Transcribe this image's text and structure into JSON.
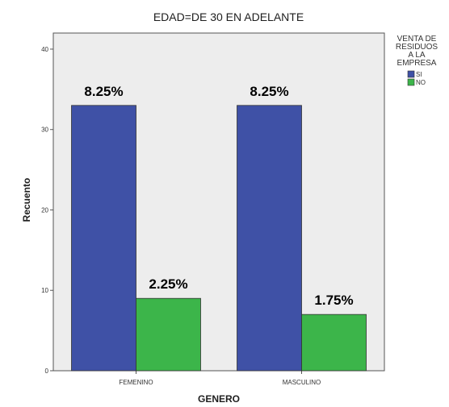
{
  "chart_data": {
    "type": "bar",
    "title": "EDAD=DE 30 EN ADELANTE",
    "xlabel": "GENERO",
    "ylabel": "Recuento",
    "categories": [
      "FEMENINO",
      "MASCULINO"
    ],
    "series": [
      {
        "name": "SI",
        "values": [
          33,
          33
        ],
        "labels": [
          "8.25%",
          "8.25%"
        ],
        "color": "#3f51a6"
      },
      {
        "name": "NO",
        "values": [
          9,
          7
        ],
        "labels": [
          "2.25%",
          "1.75%"
        ],
        "color": "#3cb54a"
      }
    ],
    "ylim": [
      0,
      42
    ],
    "yticks": [
      0,
      10,
      20,
      30,
      40
    ],
    "grid": false,
    "plot_background": "#ededed",
    "legend": {
      "title_lines": [
        "VENTA DE",
        "RESIDUOS",
        "A LA",
        "EMPRESA"
      ],
      "placement": "right"
    }
  }
}
